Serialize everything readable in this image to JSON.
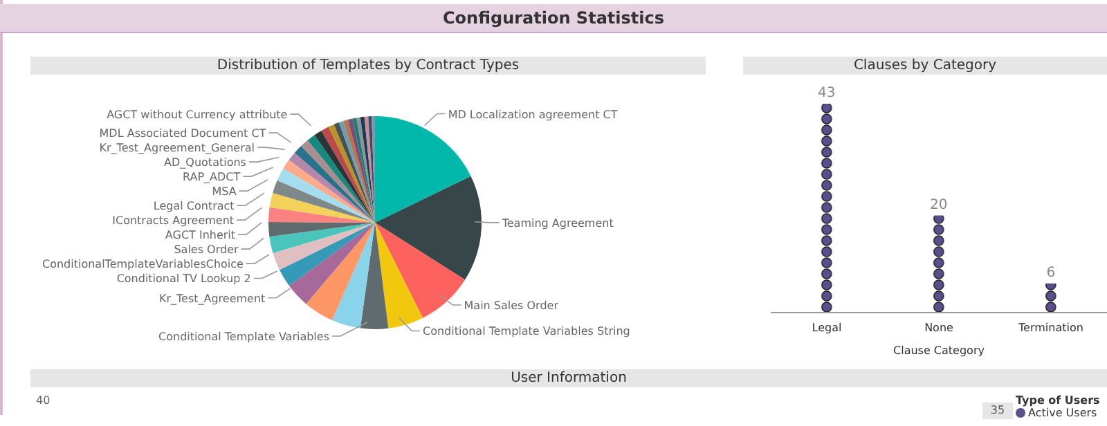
{
  "chart_data": [
    {
      "type": "pie",
      "title": "Distribution of Templates by Contract Types",
      "annotations": [
        "Configuration Statistics"
      ],
      "categories": [
        "MD Localization agreement CT",
        "Teaming Agreement",
        "Main Sales Order",
        "Conditional Template Variables String",
        "Conditional Template Variables",
        null,
        null,
        "Kr_Test_Agreement",
        "Conditional TV Lookup 2",
        "ConditionalTemplateVariablesChoice",
        "Sales Order",
        "AGCT Inherit",
        "IContracts Agreement",
        "Legal Contract",
        "MSA",
        "RAP_ADCT",
        "AD_Quotations",
        "Kr_Test_Agreement_General",
        "MDL Associated Document CT",
        null,
        null,
        "AGCT without Currency attribute",
        null,
        null,
        null,
        null,
        null,
        null,
        null,
        null,
        null,
        null,
        null,
        null
      ],
      "values": [
        17.8,
        16.2,
        8.6,
        5.4,
        4.2,
        4.4,
        4.6,
        3.7,
        2.8,
        2.7,
        2.5,
        2.2,
        2.2,
        2.2,
        2.0,
        2.0,
        1.5,
        1.4,
        1.4,
        1.3,
        1.3,
        1.2,
        1.2,
        0.9,
        0.8,
        0.7,
        0.7,
        0.7,
        0.6,
        0.6,
        0.6,
        0.6,
        0.5,
        0.5
      ],
      "colors": [
        "#01b8aa",
        "#374649",
        "#fd625e",
        "#f2c80f",
        "#5f6b6d",
        "#8ad4eb",
        "#fe9666",
        "#a66999",
        "#3599b8",
        "#dfbfbf",
        "#4ac5bb",
        "#5f6b6d",
        "#fb8281",
        "#f4d25a",
        "#7f898a",
        "#a4ddee",
        "#fdab89",
        "#b687ac",
        "#28738a",
        "#a78f8f",
        "#168980",
        "#293537",
        "#bb4a4a",
        "#b59525",
        "#475052",
        "#6a9fb0",
        "#bd7150",
        "#7b4f71",
        "#1c7c74",
        "#8a9496",
        "#1a3a5c",
        "#c98f8f",
        "#2f4f6f",
        "#9c8aa5"
      ],
      "legend": false
    },
    {
      "type": "bar",
      "title": "Clauses by Category",
      "xlabel": "Clause Category",
      "categories": [
        "Legal",
        "None",
        "Termination"
      ],
      "values": [
        43,
        20,
        6
      ],
      "data_labels": true,
      "color": "#5c4e8d",
      "tick_labels": "x"
    },
    {
      "type": "other",
      "title": "User Information",
      "legend_title": "Type of Users",
      "annotations": [
        "40",
        "35",
        "Active Users"
      ],
      "color": "#5c4e8d"
    }
  ]
}
